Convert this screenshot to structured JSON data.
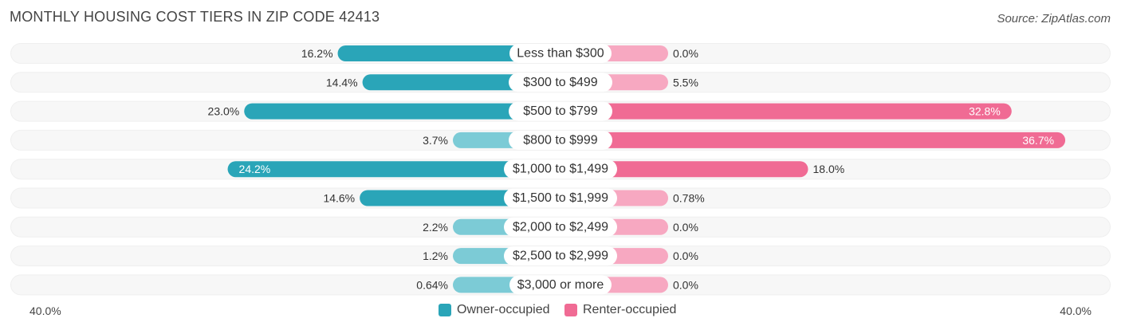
{
  "title": "MONTHLY HOUSING COST TIERS IN ZIP CODE 42413",
  "source": "Source: ZipAtlas.com",
  "colors": {
    "owner_dark": "#2aa5b8",
    "owner_light": "#7ccbd6",
    "renter_dark": "#f06b94",
    "renter_light": "#f7a8c1",
    "track": "#eeeeee"
  },
  "chart_data": {
    "type": "bar",
    "orientation": "horizontal-diverging",
    "categories": [
      "Less than $300",
      "$300 to $499",
      "$500 to $799",
      "$800 to $999",
      "$1,000 to $1,499",
      "$1,500 to $1,999",
      "$2,000 to $2,499",
      "$2,500 to $2,999",
      "$3,000 or more"
    ],
    "series": [
      {
        "name": "Owner-occupied",
        "values": [
          16.2,
          14.4,
          23.0,
          3.7,
          24.2,
          14.6,
          2.2,
          1.2,
          0.64
        ],
        "labels": [
          "16.2%",
          "14.4%",
          "23.0%",
          "3.7%",
          "24.2%",
          "14.6%",
          "2.2%",
          "1.2%",
          "0.64%"
        ]
      },
      {
        "name": "Renter-occupied",
        "values": [
          0.0,
          5.5,
          32.8,
          36.7,
          18.0,
          0.78,
          0.0,
          0.0,
          0.0
        ],
        "labels": [
          "0.0%",
          "5.5%",
          "32.8%",
          "36.7%",
          "18.0%",
          "0.78%",
          "0.0%",
          "0.0%",
          "0.0%"
        ]
      }
    ],
    "axis_min_label": "40.0%",
    "axis_max_label": "40.0%",
    "xlim": [
      -40,
      40
    ],
    "legend_position": "bottom-center"
  }
}
